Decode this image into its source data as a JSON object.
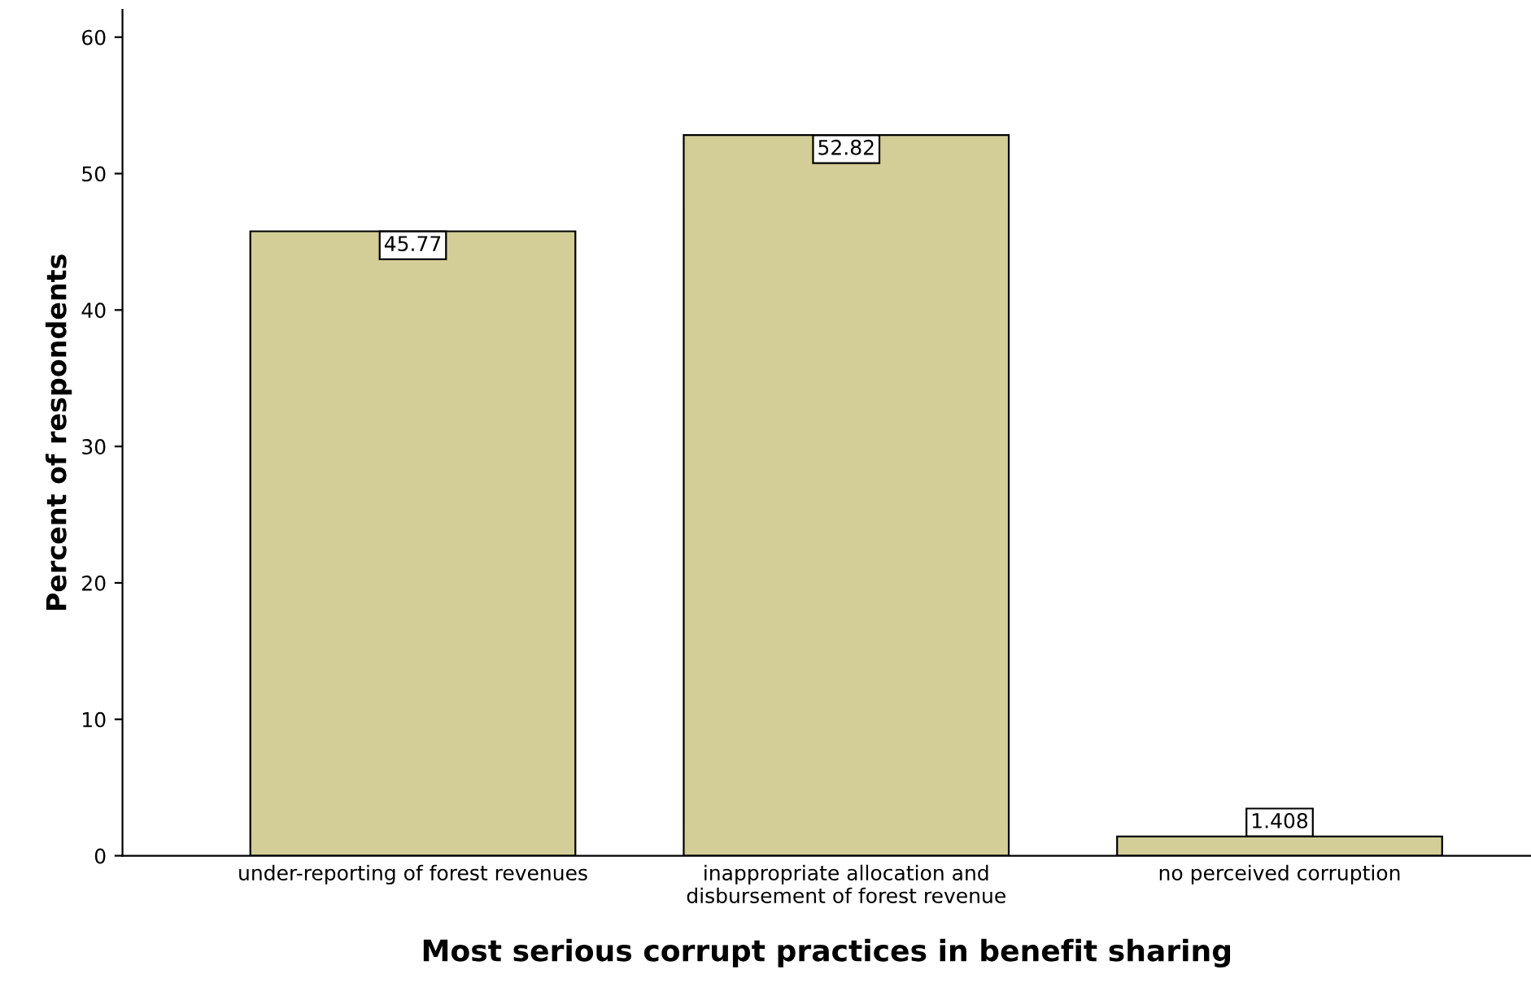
{
  "chart_data": {
    "type": "bar",
    "xlabel": "Most serious corrupt practices in benefit sharing",
    "ylabel": "Percent of respondents",
    "categories": [
      "under-reporting of forest revenues",
      "inappropriate allocation and\ndisbursement of forest revenue",
      "no perceived corruption"
    ],
    "values": [
      45.77,
      52.82,
      1.408
    ],
    "color": "#d3ce97",
    "data_labels": true,
    "ylim": [
      0,
      62
    ],
    "yticks": [
      0,
      10,
      20,
      30,
      40,
      50,
      60
    ],
    "grid": false,
    "legend": false
  }
}
